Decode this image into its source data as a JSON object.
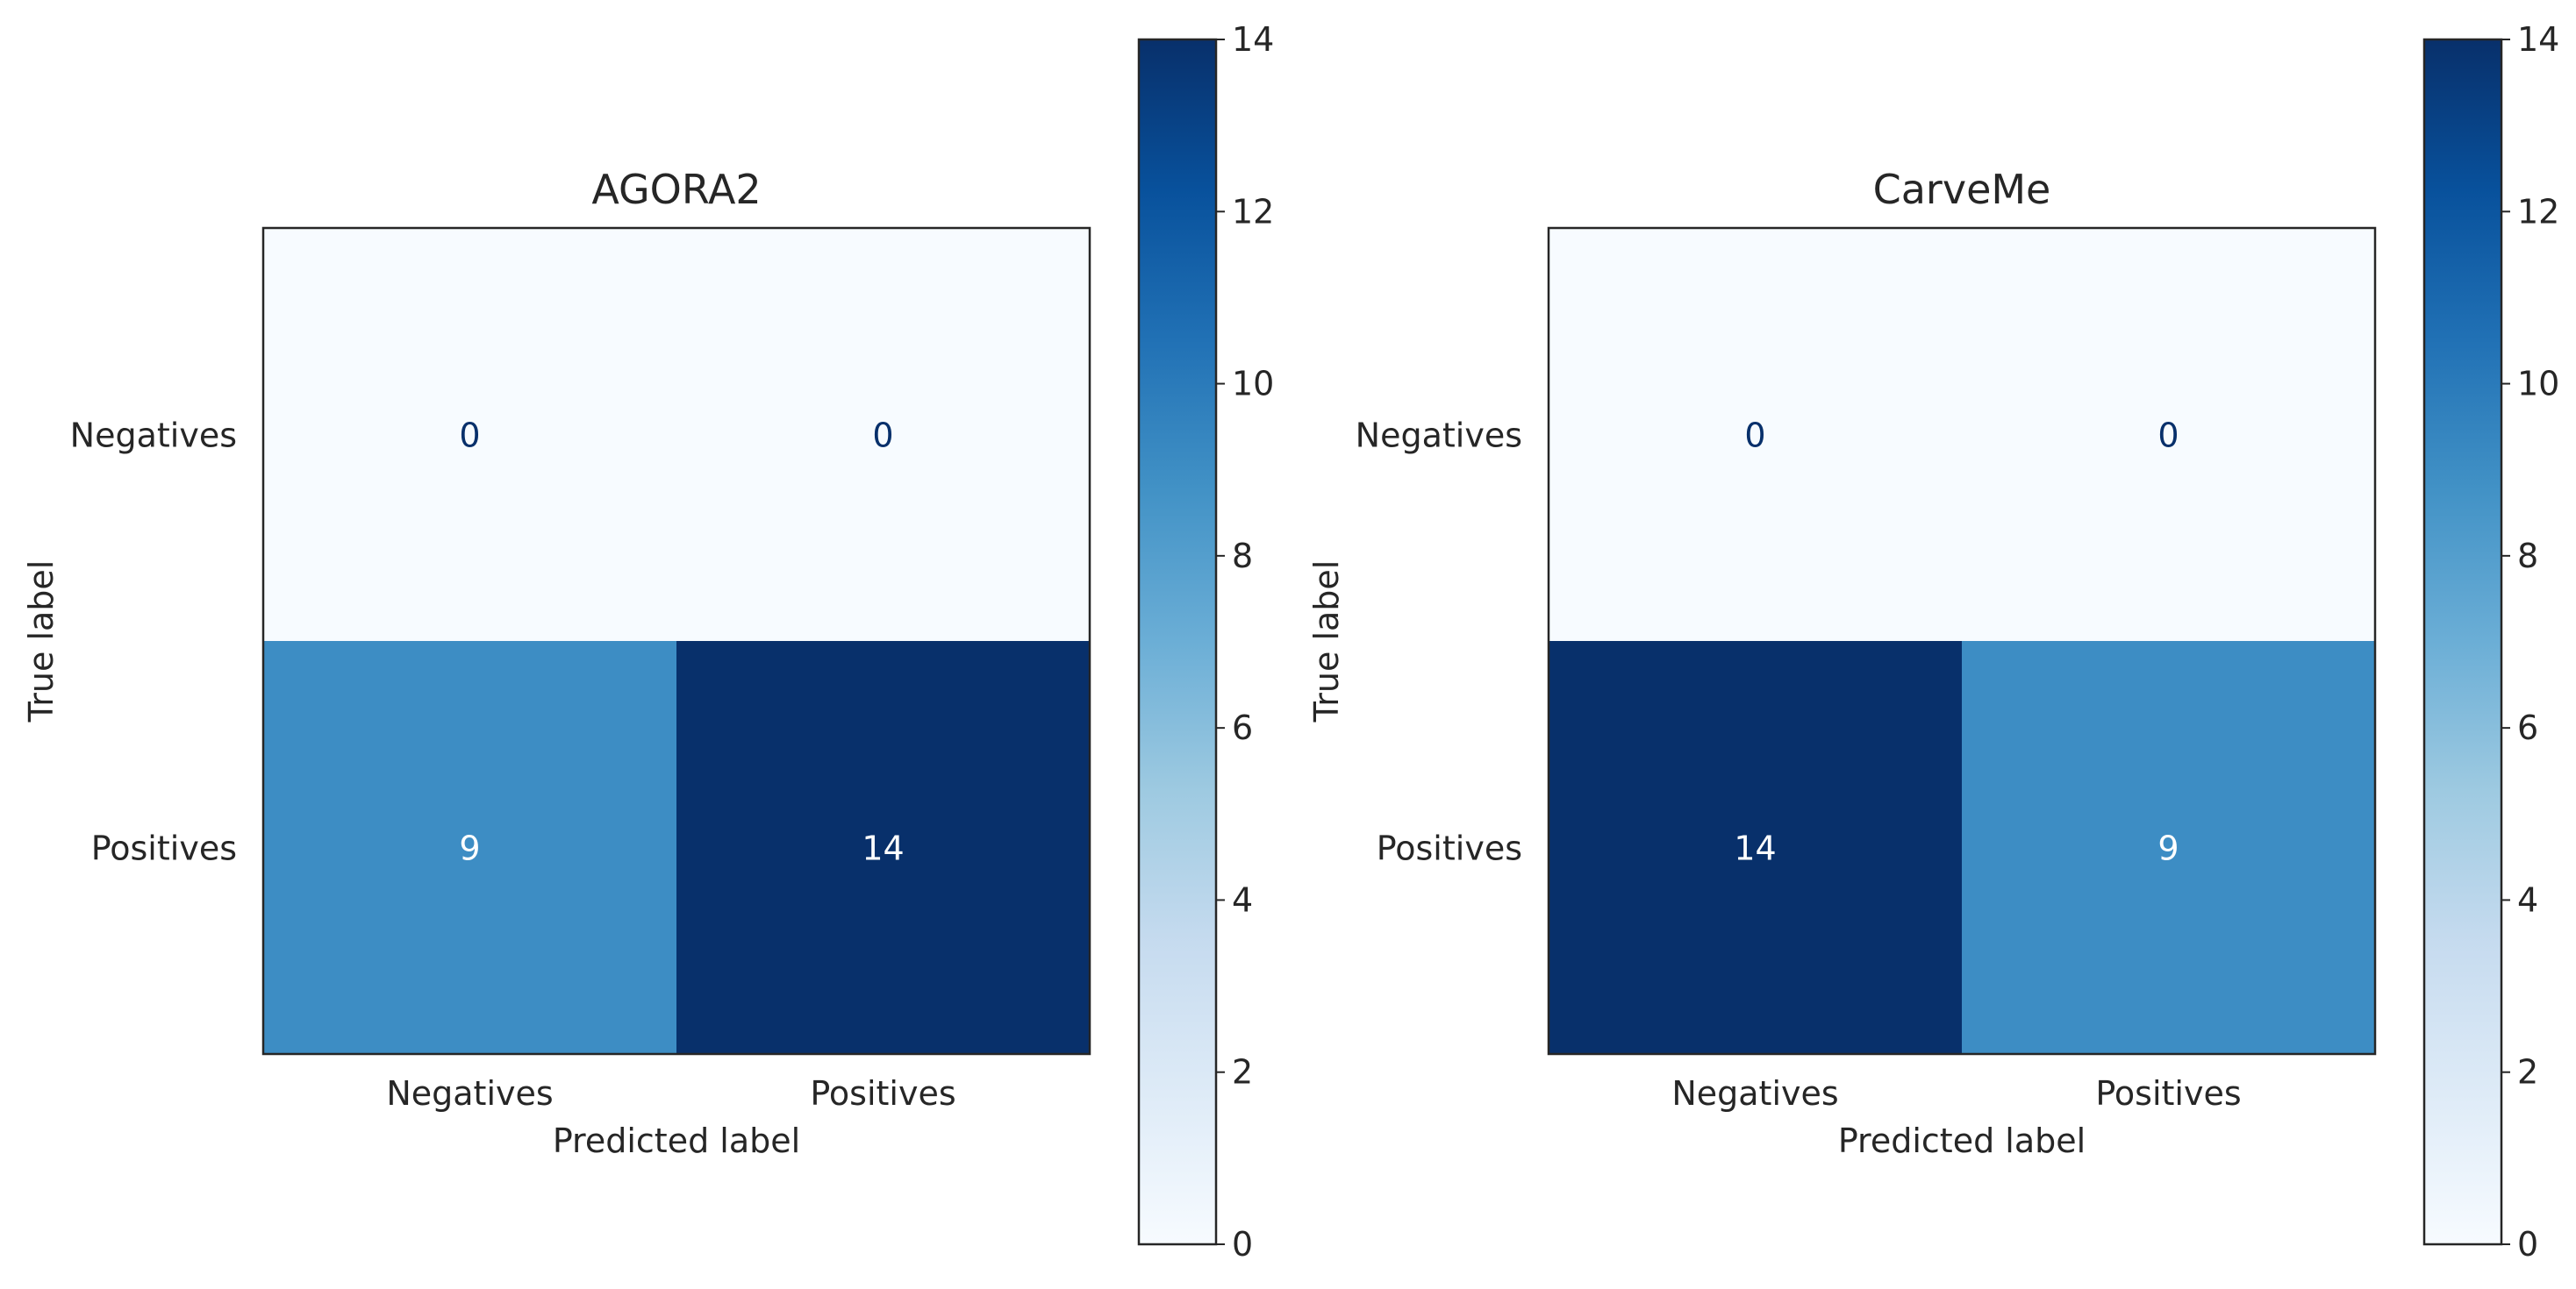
{
  "chart_data": [
    {
      "type": "heatmap",
      "title": "AGORA2",
      "xlabel": "Predicted label",
      "ylabel": "True label",
      "x_categories": [
        "Negatives",
        "Positives"
      ],
      "y_categories": [
        "Negatives",
        "Positives"
      ],
      "values": [
        [
          0,
          0
        ],
        [
          9,
          14
        ]
      ],
      "colormap": "Blues",
      "colorbar": {
        "min": 0,
        "max": 14,
        "ticks": [
          0,
          2,
          4,
          6,
          8,
          10,
          12,
          14
        ]
      }
    },
    {
      "type": "heatmap",
      "title": "CarveMe",
      "xlabel": "Predicted label",
      "ylabel": "True label",
      "x_categories": [
        "Negatives",
        "Positives"
      ],
      "y_categories": [
        "Negatives",
        "Positives"
      ],
      "values": [
        [
          0,
          0
        ],
        [
          14,
          9
        ]
      ],
      "colormap": "Blues",
      "colorbar": {
        "min": 0,
        "max": 14,
        "ticks": [
          0,
          2,
          4,
          6,
          8,
          10,
          12,
          14
        ]
      }
    }
  ],
  "colors": {
    "cmap_low": "#f7fbff",
    "cmap_high": "#08306b",
    "axis": "#262626",
    "text_light": "#ffffff",
    "text_dark": "#08306b"
  }
}
